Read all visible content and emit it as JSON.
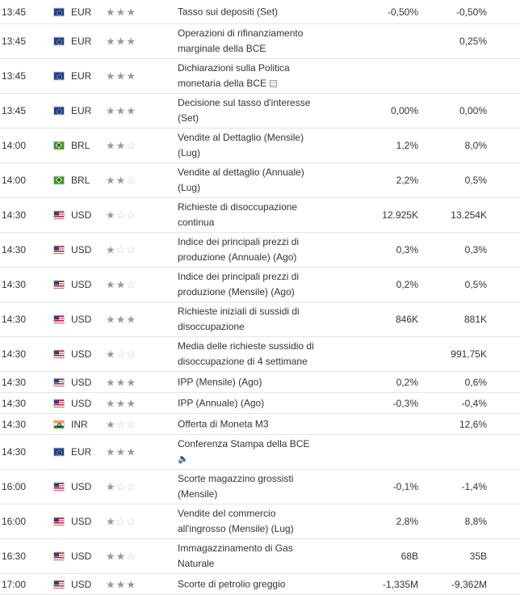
{
  "rows": [
    {
      "time": "13:45",
      "flag": "eu",
      "currency": "EUR",
      "importance": 3,
      "event": [
        "Tasso sui depositi (Set)"
      ],
      "actual": "-0,50%",
      "forecast": "-0,50%"
    },
    {
      "time": "13:45",
      "flag": "eu",
      "currency": "EUR",
      "importance": 3,
      "event": [
        "Operazioni di rifinanziamento",
        "marginale della BCE"
      ],
      "actual": "",
      "forecast": "0,25%"
    },
    {
      "time": "13:45",
      "flag": "eu",
      "currency": "EUR",
      "importance": 3,
      "event": [
        "Dichiarazioni sulla Politica",
        "monetaria della BCE"
      ],
      "actual": "",
      "forecast": "",
      "icon": "report-icon"
    },
    {
      "time": "13:45",
      "flag": "eu",
      "currency": "EUR",
      "importance": 3,
      "event": [
        "Decisione sul tasso d'interesse",
        "(Set)"
      ],
      "actual": "0,00%",
      "forecast": "0,00%"
    },
    {
      "time": "14:00",
      "flag": "br",
      "currency": "BRL",
      "importance": 2,
      "event": [
        "Vendite al Dettaglio (Mensile)",
        "(Lug)"
      ],
      "actual": "1,2%",
      "forecast": "8,0%"
    },
    {
      "time": "14:00",
      "flag": "br",
      "currency": "BRL",
      "importance": 2,
      "event": [
        "Vendite al dettaglio (Annuale)",
        "(Lug)"
      ],
      "actual": "2,2%",
      "forecast": "0,5%"
    },
    {
      "time": "14:30",
      "flag": "us",
      "currency": "USD",
      "importance": 1,
      "event": [
        "Richieste di disoccupazione",
        "continua"
      ],
      "actual": "12.925K",
      "forecast": "13.254K"
    },
    {
      "time": "14:30",
      "flag": "us",
      "currency": "USD",
      "importance": 1,
      "event": [
        "Indice dei principali prezzi di",
        "produzione (Annuale) (Ago)"
      ],
      "actual": "0,3%",
      "forecast": "0,3%"
    },
    {
      "time": "14:30",
      "flag": "us",
      "currency": "USD",
      "importance": 2,
      "event": [
        "Indice dei principali prezzi di",
        "produzione (Mensile) (Ago)"
      ],
      "actual": "0,2%",
      "forecast": "0,5%"
    },
    {
      "time": "14:30",
      "flag": "us",
      "currency": "USD",
      "importance": 3,
      "event": [
        "Richieste iniziali di sussidi di",
        "disoccupazione"
      ],
      "actual": "846K",
      "forecast": "881K"
    },
    {
      "time": "14:30",
      "flag": "us",
      "currency": "USD",
      "importance": 1,
      "event": [
        "Media delle richieste sussidio di",
        "disoccupazione di 4 settimane"
      ],
      "actual": "",
      "forecast": "991,75K"
    },
    {
      "time": "14:30",
      "flag": "us",
      "currency": "USD",
      "importance": 3,
      "event": [
        "IPP (Mensile) (Ago)"
      ],
      "actual": "0,2%",
      "forecast": "0,6%"
    },
    {
      "time": "14:30",
      "flag": "us",
      "currency": "USD",
      "importance": 3,
      "event": [
        "IPP (Annuale) (Ago)"
      ],
      "actual": "-0,3%",
      "forecast": "-0,4%"
    },
    {
      "time": "14:30",
      "flag": "in",
      "currency": "INR",
      "importance": 1,
      "event": [
        "Offerta di Moneta M3"
      ],
      "actual": "",
      "forecast": "12,6%"
    },
    {
      "time": "14:30",
      "flag": "eu",
      "currency": "EUR",
      "importance": 3,
      "event": [
        "Conferenza Stampa della BCE"
      ],
      "actual": "",
      "forecast": "",
      "icon": "speaker-icon"
    },
    {
      "time": "16:00",
      "flag": "us",
      "currency": "USD",
      "importance": 1,
      "event": [
        "Scorte magazzino grossisti",
        "(Mensile)"
      ],
      "actual": "-0,1%",
      "forecast": "-1,4%"
    },
    {
      "time": "16:00",
      "flag": "us",
      "currency": "USD",
      "importance": 1,
      "event": [
        "Vendite del commercio",
        "all'ingrosso (Mensile) (Lug)"
      ],
      "actual": "2,8%",
      "forecast": "8,8%"
    },
    {
      "time": "16:30",
      "flag": "us",
      "currency": "USD",
      "importance": 2,
      "event": [
        "Immagazzinamento di Gas",
        "Naturale"
      ],
      "actual": "68B",
      "forecast": "35B"
    },
    {
      "time": "17:00",
      "flag": "us",
      "currency": "USD",
      "importance": 3,
      "event": [
        "Scorte di petrolio greggio"
      ],
      "actual": "-1,335M",
      "forecast": "-9,362M"
    }
  ]
}
